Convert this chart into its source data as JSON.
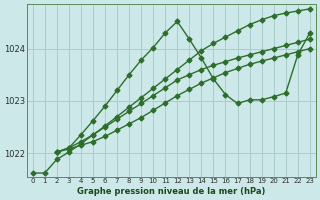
{
  "title": "Graphe pression niveau de la mer (hPa)",
  "bg_color": "#cce8e8",
  "grid_color": "#aacccc",
  "line_color": "#2d6e2d",
  "marker": "D",
  "markersize": 2.5,
  "linewidth": 1.0,
  "xlim": [
    -0.5,
    23.5
  ],
  "ylim": [
    1021.55,
    1024.85
  ],
  "xticks": [
    0,
    1,
    2,
    3,
    4,
    5,
    6,
    7,
    8,
    9,
    10,
    11,
    12,
    13,
    14,
    15,
    16,
    17,
    18,
    19,
    20,
    21,
    22,
    23
  ],
  "yticks": [
    1022,
    1023,
    1024
  ],
  "lines": [
    {
      "x": [
        0,
        1,
        2,
        3,
        4,
        5,
        6,
        7,
        8,
        9,
        10,
        11,
        12,
        13,
        14,
        15,
        16,
        17,
        18,
        19,
        20,
        21,
        22,
        23
      ],
      "y": [
        1021.62,
        1021.62,
        1021.88,
        1022.02,
        1022.18,
        1022.35,
        1022.52,
        1022.7,
        1022.88,
        1023.06,
        1023.24,
        1023.42,
        1023.6,
        1023.78,
        1023.96,
        1024.1,
        1024.22,
        1024.34,
        1024.46,
        1024.55,
        1024.63,
        1024.68,
        1024.72,
        1024.76
      ]
    },
    {
      "x": [
        2,
        3,
        4,
        5,
        6,
        7,
        8,
        9,
        10,
        11,
        12,
        13,
        14,
        15,
        16,
        17,
        18,
        19,
        20,
        21,
        22,
        23
      ],
      "y": [
        1022.02,
        1022.1,
        1022.35,
        1022.62,
        1022.9,
        1023.2,
        1023.5,
        1023.78,
        1024.02,
        1024.3,
        1024.52,
        1024.18,
        1023.82,
        1023.42,
        1023.12,
        1022.95,
        1023.02,
        1023.02,
        1023.08,
        1023.15,
        1023.88,
        1024.3
      ]
    },
    {
      "x": [
        2,
        3,
        4,
        5,
        6,
        7,
        8,
        9,
        10,
        11,
        12,
        13,
        14,
        15,
        16,
        17,
        18,
        19,
        20,
        21,
        22,
        23
      ],
      "y": [
        1022.02,
        1022.1,
        1022.22,
        1022.35,
        1022.5,
        1022.65,
        1022.8,
        1022.95,
        1023.1,
        1023.25,
        1023.4,
        1023.5,
        1023.6,
        1023.68,
        1023.75,
        1023.82,
        1023.88,
        1023.94,
        1024.0,
        1024.06,
        1024.12,
        1024.18
      ]
    },
    {
      "x": [
        2,
        3,
        4,
        5,
        6,
        7,
        8,
        9,
        10,
        11,
        12,
        13,
        14,
        15,
        16,
        17,
        18,
        19,
        20,
        21,
        22,
        23
      ],
      "y": [
        1022.02,
        1022.08,
        1022.15,
        1022.22,
        1022.32,
        1022.44,
        1022.56,
        1022.68,
        1022.82,
        1022.96,
        1023.1,
        1023.22,
        1023.34,
        1023.44,
        1023.54,
        1023.62,
        1023.7,
        1023.76,
        1023.82,
        1023.88,
        1023.94,
        1024.0
      ]
    }
  ]
}
